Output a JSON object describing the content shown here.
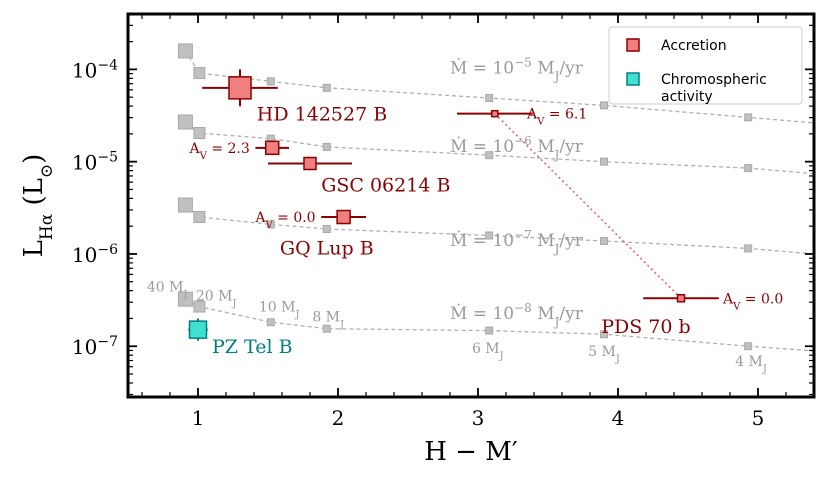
{
  "chart_data": {
    "type": "scatter",
    "xlabel": "H − M′",
    "ylabel_main": "L",
    "ylabel_sub": "Hα",
    "ylabel_unit": "(L",
    "ylabel_unit_sym": "⊙",
    "ylabel_unit_close": ")",
    "xlim": [
      0.5,
      5.4
    ],
    "ylim_log10": [
      -7.55,
      -3.4
    ],
    "xticks": [
      1,
      2,
      3,
      4,
      5
    ],
    "yticks": [
      {
        "exp": -4,
        "base": "10",
        "sup": "−4"
      },
      {
        "exp": -5,
        "base": "10",
        "sup": "−5"
      },
      {
        "exp": -6,
        "base": "10",
        "sup": "−6"
      },
      {
        "exp": -7,
        "base": "10",
        "sup": "−7"
      }
    ],
    "colors": {
      "accretion": "#8b0000",
      "accretion_fill": "#f08080",
      "chromo": "#008080",
      "chromo_fill": "#40e0d0",
      "model": "#b0b0b0",
      "model_marker": "#c0c0c0"
    },
    "model_tracks": [
      {
        "mdot_exp": "−5",
        "label_pre": "Ṁ = 10",
        "label_post": " M",
        "label_sub": "J",
        "label_end": "/yr",
        "label_at": {
          "x": 2.8,
          "y": -3.98
        },
        "points": [
          {
            "x": 0.91,
            "y": -3.8
          },
          {
            "x": 1.01,
            "y": -4.04
          },
          {
            "x": 1.52,
            "y": -4.13
          },
          {
            "x": 1.92,
            "y": -4.2
          },
          {
            "x": 3.08,
            "y": -4.31
          },
          {
            "x": 3.9,
            "y": -4.39
          },
          {
            "x": 4.93,
            "y": -4.52
          },
          {
            "x": 5.4,
            "y": -4.58
          }
        ]
      },
      {
        "mdot_exp": "−6",
        "label_pre": "Ṁ = 10",
        "label_post": " M",
        "label_sub": "J",
        "label_end": "/yr",
        "label_at": {
          "x": 2.8,
          "y": -4.83
        },
        "points": [
          {
            "x": 0.91,
            "y": -4.57
          },
          {
            "x": 1.01,
            "y": -4.69
          },
          {
            "x": 1.52,
            "y": -4.75
          },
          {
            "x": 1.92,
            "y": -4.84
          },
          {
            "x": 3.08,
            "y": -4.93
          },
          {
            "x": 3.9,
            "y": -5.0
          },
          {
            "x": 4.93,
            "y": -5.07
          },
          {
            "x": 5.4,
            "y": -5.13
          }
        ]
      },
      {
        "mdot_exp": "−7",
        "label_pre": "Ṁ = 10",
        "label_post": " M",
        "label_sub": "J",
        "label_end": "/yr",
        "label_at": {
          "x": 2.8,
          "y": -5.85
        },
        "points": [
          {
            "x": 0.91,
            "y": -5.47
          },
          {
            "x": 1.01,
            "y": -5.6
          },
          {
            "x": 1.52,
            "y": -5.68
          },
          {
            "x": 1.92,
            "y": -5.73
          },
          {
            "x": 3.08,
            "y": -5.8
          },
          {
            "x": 3.9,
            "y": -5.86
          },
          {
            "x": 4.93,
            "y": -5.94
          },
          {
            "x": 5.4,
            "y": -6.0
          }
        ]
      },
      {
        "mdot_exp": "−8",
        "label_pre": "Ṁ = 10",
        "label_post": " M",
        "label_sub": "J",
        "label_end": "/yr",
        "label_at": {
          "x": 2.8,
          "y": -6.64
        },
        "points": [
          {
            "x": 0.91,
            "y": -6.49
          },
          {
            "x": 1.01,
            "y": -6.57
          },
          {
            "x": 1.52,
            "y": -6.74
          },
          {
            "x": 1.92,
            "y": -6.81
          },
          {
            "x": 3.08,
            "y": -6.83
          },
          {
            "x": 3.9,
            "y": -6.87
          },
          {
            "x": 4.93,
            "y": -7.0
          },
          {
            "x": 5.4,
            "y": -7.05
          }
        ]
      }
    ],
    "mass_labels": [
      {
        "text": "40 M",
        "sub": "J",
        "x": 0.78,
        "y": -6.35
      },
      {
        "text": "20 M",
        "sub": "J",
        "x": 1.13,
        "y": -6.45
      },
      {
        "text": "10 M",
        "sub": "J",
        "x": 1.58,
        "y": -6.57
      },
      {
        "text": "8 M",
        "sub": "J",
        "x": 1.93,
        "y": -6.68
      },
      {
        "text": "6 M",
        "sub": "J",
        "x": 3.07,
        "y": -7.02
      },
      {
        "text": "5 M",
        "sub": "J",
        "x": 3.9,
        "y": -7.05
      },
      {
        "text": "4 M",
        "sub": "J",
        "x": 4.95,
        "y": -7.16
      }
    ],
    "objects": [
      {
        "name": "HD 142527 B",
        "kind": "accretion",
        "x": 1.3,
        "xerr": 0.27,
        "y": -4.2,
        "yerr": 0.2,
        "size": 22,
        "label_at": {
          "x": 1.42,
          "y": -4.48
        },
        "label_anchor": "start",
        "label_color": "#8b0000"
      },
      {
        "name": "GSC 06214 B",
        "kind": "accretion",
        "x": 1.8,
        "xerr": 0.3,
        "y": -5.02,
        "yerr": 0.06,
        "size": 12,
        "label_at": {
          "x": 1.88,
          "y": -5.25
        },
        "label_anchor": "start",
        "label_color": "#8b0000"
      },
      {
        "name": "GQ Lup B",
        "kind": "accretion",
        "x": 2.04,
        "xerr": 0.16,
        "y": -5.6,
        "yerr": 0.06,
        "size": 13,
        "label_at": {
          "x": 1.92,
          "y": -5.93
        },
        "label_anchor": "middle",
        "label_color": "#8b0000"
      },
      {
        "name": "PDS 70 b",
        "kind": "accretion",
        "x": 4.45,
        "xerr": 0.27,
        "y": -6.48,
        "yerr": 0.02,
        "size": 7,
        "label_at": {
          "x": 4.2,
          "y": -6.78
        },
        "label_anchor": "middle",
        "label_color": "#8b0000"
      },
      {
        "name": "",
        "kind": "accretion",
        "x": 1.53,
        "xerr": 0.12,
        "y": -4.85,
        "yerr": 0.05,
        "size": 13,
        "label_at": null,
        "label_anchor": "start",
        "label_color": "#8b0000"
      },
      {
        "name": "",
        "kind": "accretion",
        "x": 3.12,
        "xerr": 0.27,
        "y": -4.48,
        "yerr": 0.02,
        "size": 6,
        "label_at": null,
        "label_anchor": "start",
        "label_color": "#8b0000"
      },
      {
        "name": "PZ Tel B",
        "kind": "chromo",
        "x": 1.0,
        "xerr": 0.07,
        "y": -6.82,
        "yerr": 0.12,
        "size": 17,
        "label_at": {
          "x": 1.1,
          "y": -7.0
        },
        "label_anchor": "start",
        "label_color": "#008080"
      }
    ],
    "extinction_labels": [
      {
        "text": "A",
        "sub": "V",
        "rest": " = 6.1",
        "x": 3.35,
        "y": -4.48,
        "anchor": "start"
      },
      {
        "text": "A",
        "sub": "V",
        "rest": " = 2.3",
        "x": 1.37,
        "y": -4.85,
        "anchor": "end"
      },
      {
        "text": "A",
        "sub": "V",
        "rest": " = 0.0",
        "x": 1.84,
        "y": -5.6,
        "anchor": "end"
      },
      {
        "text": "A",
        "sub": "V",
        "rest": " = 0.0",
        "x": 4.75,
        "y": -6.48,
        "anchor": "start"
      }
    ],
    "extinction_line": [
      {
        "x": 3.12,
        "y": -4.48
      },
      {
        "x": 4.45,
        "y": -6.48
      }
    ],
    "legend": {
      "position": "top-right",
      "items": [
        {
          "kind": "accretion",
          "label_lines": [
            "Accretion"
          ]
        },
        {
          "kind": "chromo",
          "label_lines": [
            "Chromospheric",
            "activity"
          ]
        }
      ]
    }
  }
}
